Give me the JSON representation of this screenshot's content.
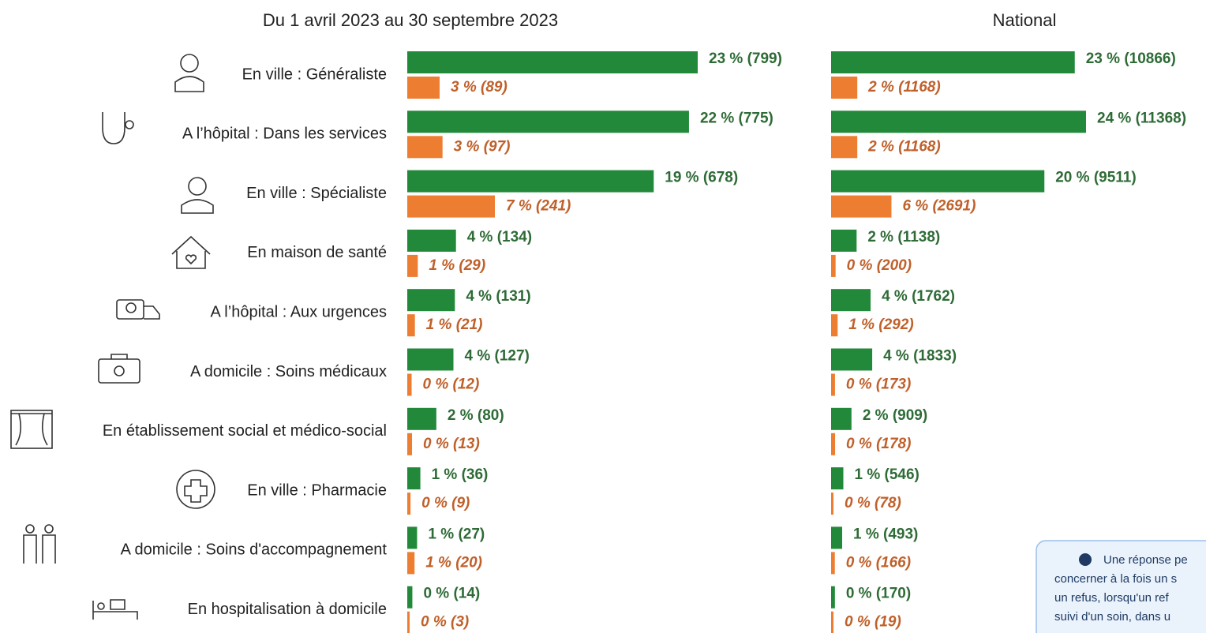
{
  "chart_data": [
    {
      "type": "bar",
      "orientation": "horizontal",
      "title": "Du 1 avril 2023 au 30 septembre 2023",
      "categories": [
        "En ville : Généraliste",
        "A l’hôpital : Dans les services",
        "En ville : Spécialiste",
        "En maison de santé",
        "A l’hôpital : Aux urgences",
        "A domicile : Soins médicaux",
        "En établissement social et médico-social",
        "En ville : Pharmacie",
        "A domicile : Soins d'accompagnement",
        "En hospitalisation à domicile"
      ],
      "series": [
        {
          "color": "#23893a",
          "values": [
            799,
            775,
            678,
            134,
            131,
            127,
            80,
            36,
            27,
            14
          ],
          "value_labels": [
            "23 % (799)",
            "22 % (775)",
            "19 % (678)",
            "4 % (134)",
            "4 % (131)",
            "4 % (127)",
            "2 % (80)",
            "1 % (36)",
            "1 % (27)",
            "0 % (14)"
          ]
        },
        {
          "color": "#ed7d31",
          "values": [
            89,
            97,
            241,
            29,
            21,
            12,
            13,
            9,
            20,
            3
          ],
          "value_labels": [
            "3 % (89)",
            "3 % (97)",
            "7 % (241)",
            "1 % (29)",
            "1 % (21)",
            "0 % (12)",
            "0 % (13)",
            "0 % (9)",
            "1 % (20)",
            "0 % (3)"
          ]
        }
      ]
    },
    {
      "type": "bar",
      "orientation": "horizontal",
      "title": "National",
      "series": [
        {
          "color": "#23893a",
          "values": [
            10866,
            11368,
            9511,
            1138,
            1762,
            1833,
            909,
            546,
            493,
            170
          ],
          "value_labels": [
            "23 % (10866)",
            "24 % (11368)",
            "20 % (9511)",
            "2 % (1138)",
            "4 % (1762)",
            "4 % (1833)",
            "2 % (909)",
            "1 % (546)",
            "1 % (493)",
            "0 % (170)"
          ]
        },
        {
          "color": "#ed7d31",
          "values": [
            1168,
            1168,
            2691,
            200,
            292,
            173,
            178,
            78,
            166,
            19
          ],
          "value_labels": [
            "2 % (1168)",
            "2 % (1168)",
            "6 % (2691)",
            "0 % (200)",
            "1 % (292)",
            "0 % (173)",
            "0 % (178)",
            "0 % (78)",
            "0 % (166)",
            "0 % (19)"
          ]
        }
      ]
    }
  ],
  "note": {
    "lines": [
      "Une réponse pe",
      "concerner à la fois un s",
      "un refus, lorsqu'un ref",
      "suivi d'un soin, dans u"
    ]
  }
}
